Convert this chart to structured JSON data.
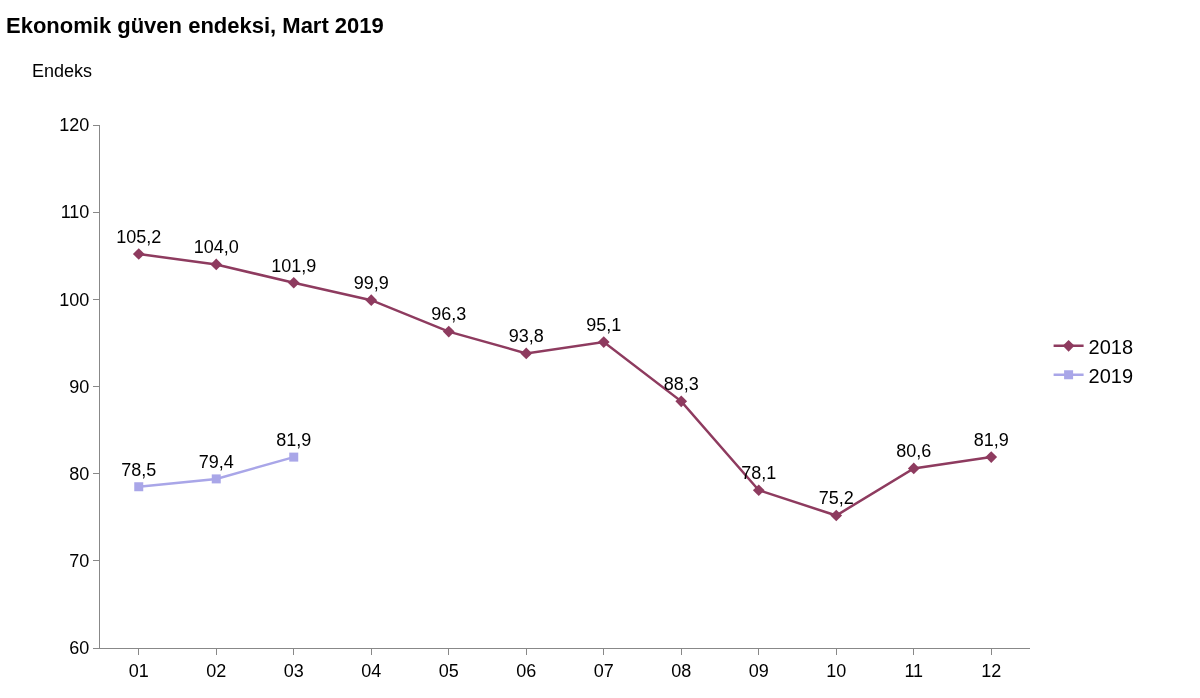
{
  "chart_data": {
    "type": "line",
    "title": "Ekonomik güven endeksi, Mart 2019",
    "ylabel": "Endeks",
    "categories": [
      "01",
      "02",
      "03",
      "04",
      "05",
      "06",
      "07",
      "08",
      "09",
      "10",
      "11",
      "12"
    ],
    "series": [
      {
        "name": "2018",
        "color": "#8e3b5f",
        "marker": "diamond",
        "values": [
          105.2,
          104.0,
          101.9,
          99.9,
          96.3,
          93.8,
          95.1,
          88.3,
          78.1,
          75.2,
          80.6,
          81.9
        ],
        "value_labels": [
          "105,2",
          "104,0",
          "101,9",
          "99,9",
          "96,3",
          "93,8",
          "95,1",
          "88,3",
          "78,1",
          "75,2",
          "80,6",
          "81,9"
        ]
      },
      {
        "name": "2019",
        "color": "#a9a6e8",
        "marker": "square",
        "values": [
          78.5,
          79.4,
          81.9,
          null,
          null,
          null,
          null,
          null,
          null,
          null,
          null,
          null
        ],
        "value_labels": [
          "78,5",
          "79,4",
          "81,9",
          null,
          null,
          null,
          null,
          null,
          null,
          null,
          null,
          null
        ]
      }
    ],
    "ylim": [
      60,
      120
    ],
    "yticks": [
      60,
      70,
      80,
      90,
      100,
      110,
      120
    ],
    "legend": "right",
    "line_style": "solid"
  }
}
